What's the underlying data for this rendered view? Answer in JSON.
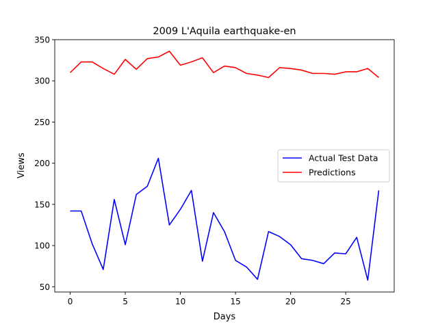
{
  "chart_data": {
    "type": "line",
    "title": "2009 L'Aquila earthquake-en",
    "xlabel": "Days",
    "ylabel": "Views",
    "xlim": [
      -1.4,
      29.4
    ],
    "ylim": [
      43.6,
      350
    ],
    "xticks": [
      0,
      5,
      10,
      15,
      20,
      25
    ],
    "yticks": [
      50,
      100,
      150,
      200,
      250,
      300,
      350
    ],
    "grid": false,
    "legend_position": "center-right",
    "x": [
      0,
      1,
      2,
      3,
      4,
      5,
      6,
      7,
      8,
      9,
      10,
      11,
      12,
      13,
      14,
      15,
      16,
      17,
      18,
      19,
      20,
      21,
      22,
      23,
      24,
      25,
      26,
      27,
      28
    ],
    "series": [
      {
        "name": "Actual Test Data",
        "color": "#0000ff",
        "values": [
          142,
          142,
          102,
          71,
          156,
          101,
          162,
          172,
          206,
          125,
          144,
          167,
          81,
          140,
          117,
          82,
          74,
          59,
          117,
          111,
          101,
          84,
          82,
          78,
          91,
          90,
          110,
          58,
          167
        ]
      },
      {
        "name": "Predictions",
        "color": "#ff0000",
        "values": [
          310,
          323,
          323,
          315,
          308,
          326,
          314,
          327,
          329,
          336,
          319,
          323,
          328,
          310,
          318,
          316,
          309,
          307,
          304,
          316,
          315,
          313,
          309,
          309,
          308,
          311,
          311,
          315,
          304
        ]
      }
    ]
  }
}
